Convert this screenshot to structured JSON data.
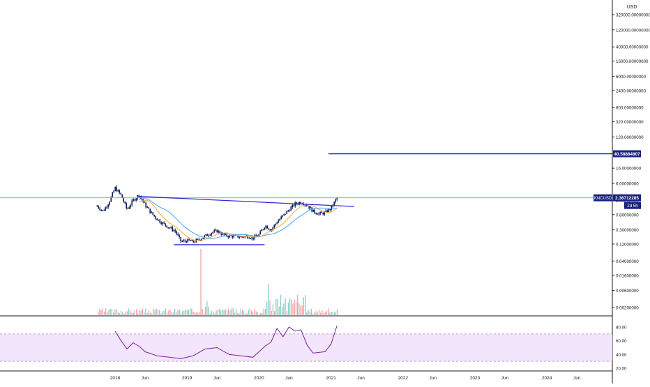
{
  "colors": {
    "candle_up": "#26a69a",
    "candle_down": "#ef5350",
    "candle_body": "#0d1b5e",
    "trendline": "#2b2fd6",
    "target_line": "#1f22d8",
    "current_line": "#87a9e6",
    "ma_fast": "#f2a93b",
    "ma_slow": "#4ea0e8",
    "rsi_line": "#7b1fa2",
    "rsi_band": "#f3e5fb",
    "label_bg": "#1a237e",
    "label_text": "#ffffff",
    "axis_text": "#131722",
    "grid": "#e0e3eb"
  },
  "price_axis": {
    "unit": "USD",
    "ticks": [
      "320000.00000000",
      "120000.00000000",
      "40000.00000000",
      "16000.00000000",
      "6000.00000000",
      "2400.00000000",
      "800.00000000",
      "320.00000000",
      "120.00000000",
      "40.00000000",
      "16.00000000",
      "6.00000000",
      "2.00000000",
      "0.80000000",
      "0.30000000",
      "0.12000000",
      "0.04000000",
      "0.01600000",
      "0.00600000",
      "0.00200000"
    ],
    "target_label": "40.58884807",
    "symbol_label": "KNCUSD",
    "current_price_label": "2.36712285",
    "countdown_label": "2d 5h"
  },
  "rsi_axis": {
    "ticks": [
      "80.00",
      "60.00",
      "40.00",
      "20.00"
    ]
  },
  "time_axis": {
    "ticks": [
      "2018",
      "Jun",
      "2019",
      "Jun",
      "2020",
      "Jun",
      "2021",
      "Jun",
      "2022",
      "Jun",
      "2023",
      "Jun",
      "2024",
      "Jun"
    ]
  },
  "chart_data": {
    "type": "candlestick",
    "symbol": "KNCUSD",
    "y_scale": "log",
    "x_range": [
      "2017-10",
      "2024-10"
    ],
    "ylim": [
      0.0015,
      800000
    ],
    "price_series_weekly_close": [
      [
        "2017-10",
        1.4
      ],
      [
        "2017-11",
        1.0
      ],
      [
        "2017-12",
        1.8
      ],
      [
        "2018-01",
        4.5
      ],
      [
        "2018-02",
        2.8
      ],
      [
        "2018-03",
        1.1
      ],
      [
        "2018-04",
        2.0
      ],
      [
        "2018-05",
        2.9
      ],
      [
        "2018-06",
        1.5
      ],
      [
        "2018-07",
        0.9
      ],
      [
        "2018-08",
        0.6
      ],
      [
        "2018-09",
        0.45
      ],
      [
        "2018-10",
        0.35
      ],
      [
        "2018-11",
        0.28
      ],
      [
        "2018-12",
        0.14
      ],
      [
        "2019-01",
        0.15
      ],
      [
        "2019-02",
        0.14
      ],
      [
        "2019-03",
        0.16
      ],
      [
        "2019-04",
        0.2
      ],
      [
        "2019-05",
        0.25
      ],
      [
        "2019-06",
        0.28
      ],
      [
        "2019-07",
        0.22
      ],
      [
        "2019-08",
        0.2
      ],
      [
        "2019-09",
        0.2
      ],
      [
        "2019-10",
        0.19
      ],
      [
        "2019-11",
        0.2
      ],
      [
        "2019-12",
        0.18
      ],
      [
        "2020-01",
        0.22
      ],
      [
        "2020-02",
        0.4
      ],
      [
        "2020-03",
        0.3
      ],
      [
        "2020-04",
        0.5
      ],
      [
        "2020-05",
        0.75
      ],
      [
        "2020-06",
        1.1
      ],
      [
        "2020-07",
        1.6
      ],
      [
        "2020-08",
        1.8
      ],
      [
        "2020-09",
        1.5
      ],
      [
        "2020-10",
        1.0
      ],
      [
        "2020-11",
        0.85
      ],
      [
        "2020-12",
        0.9
      ],
      [
        "2021-01",
        1.2
      ],
      [
        "2021-02",
        2.37
      ]
    ],
    "trendline_resistance": [
      [
        "2018-04",
        2.6
      ],
      [
        "2021-06",
        1.35
      ]
    ],
    "trendline_support": [
      [
        "2018-11",
        0.115
      ],
      [
        "2020-01",
        0.115
      ]
    ],
    "target_level": 40.58884807,
    "current_price": 2.36712285,
    "rsi": {
      "ylim": [
        20,
        90
      ],
      "band": [
        30,
        70
      ],
      "values": [
        [
          "2018-01",
          74
        ],
        [
          "2018-02",
          60
        ],
        [
          "2018-03",
          48
        ],
        [
          "2018-04",
          57
        ],
        [
          "2018-05",
          52
        ],
        [
          "2018-06",
          44
        ],
        [
          "2018-08",
          38
        ],
        [
          "2018-10",
          36
        ],
        [
          "2018-12",
          34
        ],
        [
          "2019-02",
          38
        ],
        [
          "2019-04",
          48
        ],
        [
          "2019-06",
          50
        ],
        [
          "2019-08",
          40
        ],
        [
          "2019-10",
          38
        ],
        [
          "2019-12",
          36
        ],
        [
          "2020-02",
          52
        ],
        [
          "2020-03",
          58
        ],
        [
          "2020-04",
          78
        ],
        [
          "2020-05",
          66
        ],
        [
          "2020-06",
          80
        ],
        [
          "2020-07",
          74
        ],
        [
          "2020-08",
          76
        ],
        [
          "2020-09",
          54
        ],
        [
          "2020-10",
          42
        ],
        [
          "2020-12",
          44
        ],
        [
          "2021-01",
          55
        ],
        [
          "2021-02",
          82
        ]
      ]
    }
  }
}
